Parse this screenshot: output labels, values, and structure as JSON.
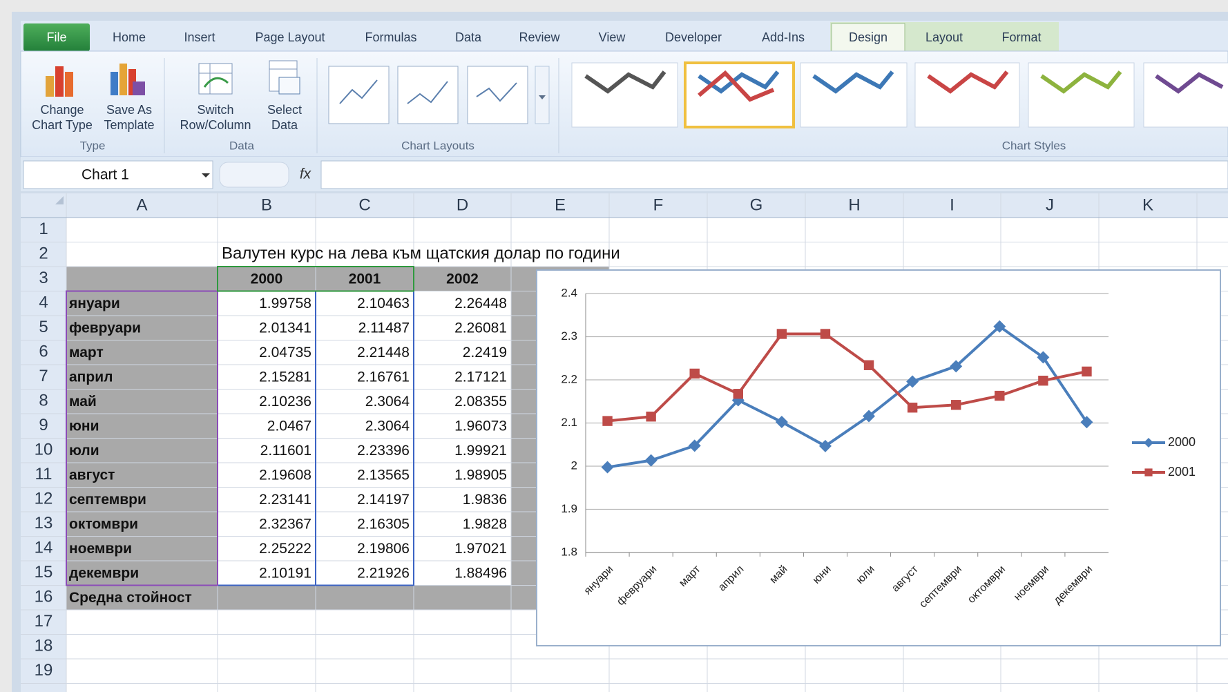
{
  "ribbon": {
    "tabs": [
      "File",
      "Home",
      "Insert",
      "Page Layout",
      "Formulas",
      "Data",
      "Review",
      "View",
      "Developer",
      "Add-Ins",
      "Design",
      "Layout",
      "Format"
    ],
    "groups": [
      {
        "label": "Type",
        "buttons": [
          [
            "Change",
            "Chart Type"
          ],
          [
            "Save As",
            "Template"
          ]
        ]
      },
      {
        "label": "Data",
        "buttons": [
          [
            "Switch",
            "Row/Column"
          ],
          [
            "Select",
            "Data"
          ]
        ]
      },
      {
        "label": "Chart Layouts",
        "buttons": []
      },
      {
        "label": "Chart Styles",
        "buttons": []
      }
    ]
  },
  "formula_bar": {
    "name_box": "Chart 1",
    "function_icon": "fx"
  },
  "sheet": {
    "columns": [
      "A",
      "B",
      "C",
      "D",
      "E",
      "F",
      "G",
      "H",
      "I",
      "J",
      "K"
    ],
    "rows": [
      1,
      2,
      3,
      4,
      5,
      6,
      7,
      8,
      9,
      10,
      11,
      12,
      13,
      14,
      15,
      16,
      17,
      18,
      19
    ],
    "title": "Валутен курс на лева към щатския долар по години",
    "header": [
      2000,
      2001,
      2002
    ],
    "row_labels": [
      "януари",
      "февруари",
      "март",
      "април",
      "май",
      "юни",
      "юли",
      "август",
      "септември",
      "октомври",
      "ноември",
      "декември"
    ],
    "data": [
      [
        1.99758,
        2.10463,
        2.26448
      ],
      [
        2.01341,
        2.11487,
        2.26081
      ],
      [
        2.04735,
        2.21448,
        2.2419
      ],
      [
        2.15281,
        2.16761,
        2.17121
      ],
      [
        2.10236,
        2.3064,
        2.08355
      ],
      [
        2.0467,
        2.3064,
        1.96073
      ],
      [
        2.11601,
        2.23396,
        1.99921
      ],
      [
        2.19608,
        2.13565,
        1.98905
      ],
      [
        2.23141,
        2.14197,
        1.9836
      ],
      [
        2.32367,
        2.16305,
        1.9828
      ],
      [
        2.25222,
        2.19806,
        1.97021
      ],
      [
        2.10191,
        2.21926,
        1.88496
      ]
    ],
    "summary_label": "Средна стойност"
  },
  "chart_data": {
    "type": "line",
    "categories": [
      "януари",
      "февруари",
      "март",
      "април",
      "май",
      "юни",
      "юли",
      "август",
      "септември",
      "октомври",
      "ноември",
      "декември"
    ],
    "series": [
      {
        "name": "2000",
        "color": "#4a7ebb",
        "marker": "diamond",
        "values": [
          1.99758,
          2.01341,
          2.04735,
          2.15281,
          2.10236,
          2.0467,
          2.11601,
          2.19608,
          2.23141,
          2.32367,
          2.25222,
          2.10191
        ]
      },
      {
        "name": "2001",
        "color": "#be4b48",
        "marker": "square",
        "values": [
          2.10463,
          2.11487,
          2.21448,
          2.16761,
          2.3064,
          2.3064,
          2.23396,
          2.13565,
          2.14197,
          2.16305,
          2.19806,
          2.21926
        ]
      }
    ],
    "ylim": [
      1.8,
      2.4
    ],
    "yticks": [
      1.8,
      1.9,
      2,
      2.1,
      2.2,
      2.3,
      2.4
    ],
    "grid": true,
    "legend": "right"
  }
}
